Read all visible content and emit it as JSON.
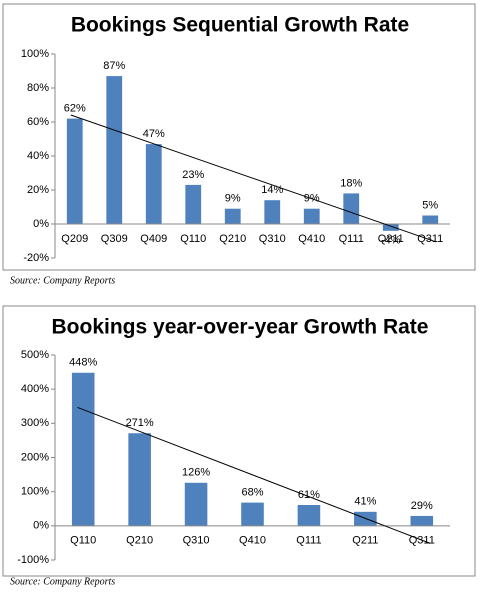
{
  "chart_data": [
    {
      "type": "bar",
      "title": "Bookings Sequential Growth Rate",
      "source": "Source: Company Reports",
      "categories": [
        "Q209",
        "Q309",
        "Q409",
        "Q110",
        "Q210",
        "Q310",
        "Q410",
        "Q111",
        "Q211",
        "Q311"
      ],
      "values": [
        62,
        87,
        47,
        23,
        9,
        14,
        9,
        18,
        -4,
        5
      ],
      "value_labels": [
        "62%",
        "87%",
        "47%",
        "23%",
        "9%",
        "14%",
        "9%",
        "18%",
        "-4%",
        "5%"
      ],
      "color": "#4f81bd",
      "trendline": true,
      "grid": false,
      "ylim": [
        -20,
        100
      ],
      "yticks": [
        {
          "value": -20,
          "label": "-20%"
        },
        {
          "value": 0,
          "label": "0%"
        },
        {
          "value": 20,
          "label": "20%"
        },
        {
          "value": 40,
          "label": "40%"
        },
        {
          "value": 60,
          "label": "60%"
        },
        {
          "value": 80,
          "label": "80%"
        },
        {
          "value": 100,
          "label": "100%"
        }
      ]
    },
    {
      "type": "bar",
      "title": "Bookings year-over-year Growth Rate",
      "source": "Source: Company Reports",
      "categories": [
        "Q110",
        "Q210",
        "Q310",
        "Q410",
        "Q111",
        "Q211",
        "Q311"
      ],
      "values": [
        448,
        271,
        126,
        68,
        61,
        41,
        29
      ],
      "value_labels": [
        "448%",
        "271%",
        "126%",
        "68%",
        "61%",
        "41%",
        "29%"
      ],
      "color": "#4f81bd",
      "trendline": true,
      "grid": false,
      "ylim": [
        -100,
        500
      ],
      "yticks": [
        {
          "value": -100,
          "label": "-100%"
        },
        {
          "value": 0,
          "label": "0%"
        },
        {
          "value": 100,
          "label": "100%"
        },
        {
          "value": 200,
          "label": "200%"
        },
        {
          "value": 300,
          "label": "300%"
        },
        {
          "value": 400,
          "label": "400%"
        },
        {
          "value": 500,
          "label": "500%"
        }
      ]
    }
  ]
}
